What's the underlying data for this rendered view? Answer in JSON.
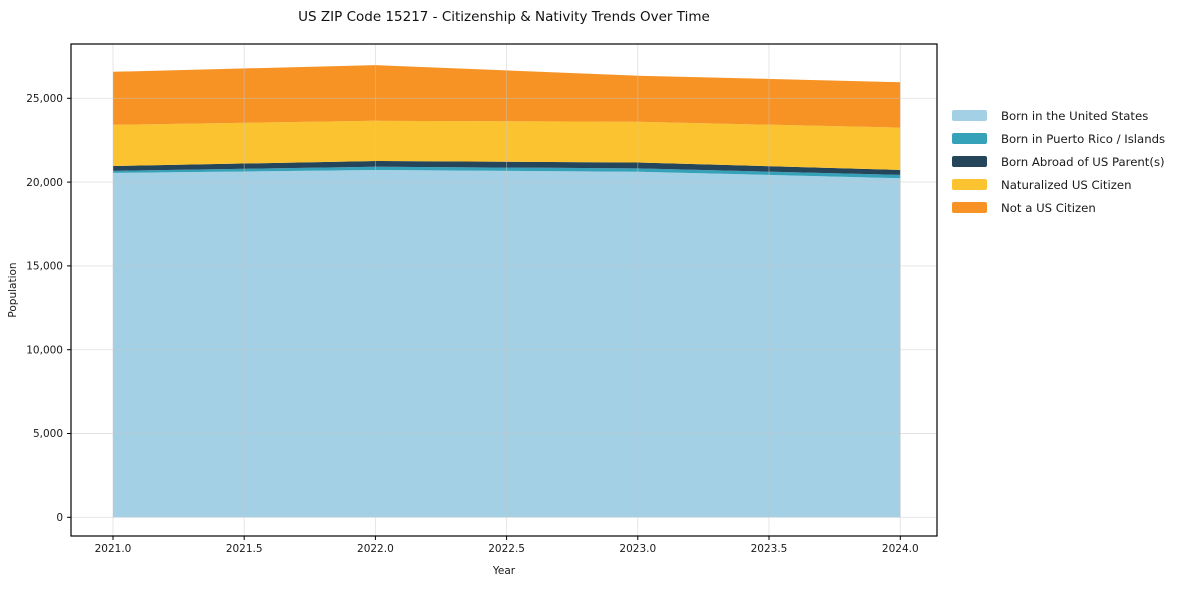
{
  "chart_data": {
    "type": "area",
    "stacked": true,
    "title": "US ZIP Code 15217 - Citizenship & Nativity Trends Over Time",
    "xlabel": "Year",
    "ylabel": "Population",
    "x": [
      2021,
      2022,
      2023,
      2024
    ],
    "series": [
      {
        "name": "Born in the United States",
        "color": "#a3d0e5",
        "values": [
          20550,
          20720,
          20620,
          20230
        ]
      },
      {
        "name": "Born in Puerto Rico / Islands",
        "color": "#36a2ba",
        "values": [
          120,
          200,
          200,
          200
        ]
      },
      {
        "name": "Born Abroad of US Parent(s)",
        "color": "#25455a",
        "values": [
          290,
          340,
          350,
          300
        ]
      },
      {
        "name": "Naturalized US Citizen",
        "color": "#fcc331",
        "values": [
          2460,
          2400,
          2430,
          2520
        ]
      },
      {
        "name": "Not a US Citizen",
        "color": "#f69324",
        "values": [
          3160,
          3320,
          2750,
          2710
        ]
      }
    ],
    "totals": [
      26580,
      26980,
      26350,
      25960
    ],
    "xlim": [
      2020.84,
      2024.14
    ],
    "ylim": [
      -1116,
      28240
    ],
    "xticks": {
      "values": [
        2021.0,
        2021.5,
        2022.0,
        2022.5,
        2023.0,
        2023.5,
        2024.0
      ],
      "labels": [
        "2021.0",
        "2021.5",
        "2022.0",
        "2022.5",
        "2023.0",
        "2023.5",
        "2024.0"
      ]
    },
    "yticks": {
      "values": [
        0,
        5000,
        10000,
        15000,
        20000,
        25000
      ],
      "labels": [
        "0",
        "5,000",
        "10,000",
        "15,000",
        "20,000",
        "25,000"
      ]
    },
    "grid": true,
    "legend_position": "right-outside",
    "grid_color": "#c8c8c8",
    "axis_color": "#000000",
    "text_color": "#1a1a1a",
    "background": "#ffffff"
  }
}
